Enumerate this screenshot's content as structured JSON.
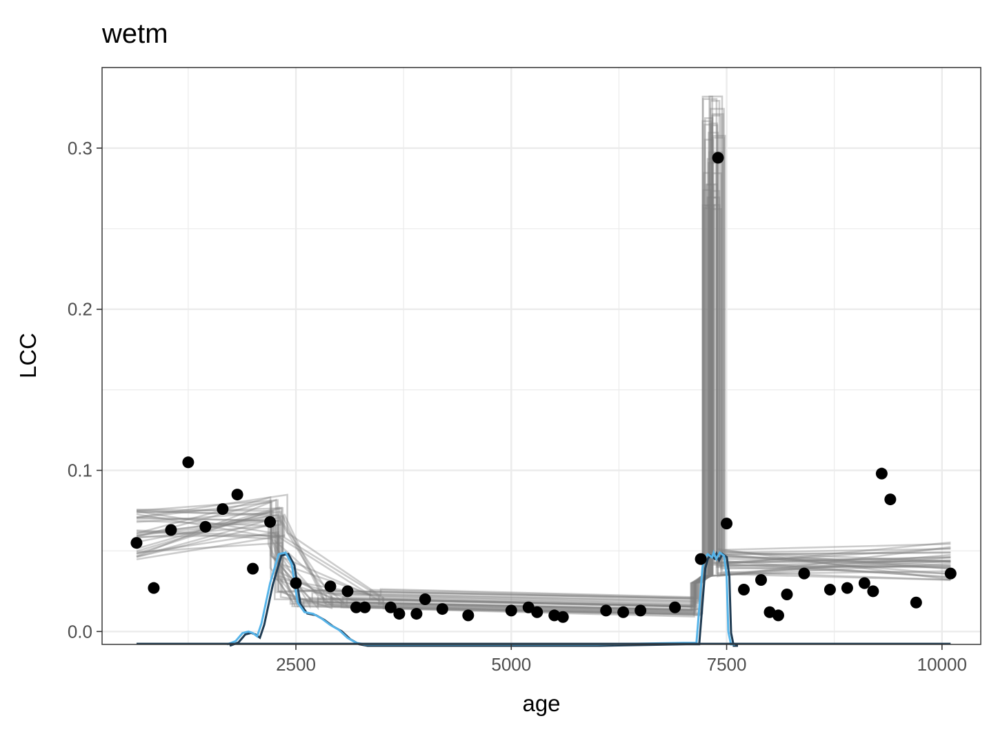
{
  "chart_data": {
    "type": "scatter",
    "title": "wetm",
    "xlabel": "age",
    "ylabel": "LCC",
    "xlim": [
      250,
      10450
    ],
    "ylim": [
      -0.008,
      0.35
    ],
    "x_ticks": [
      2500,
      5000,
      7500,
      10000
    ],
    "x_tick_labels": [
      "2500",
      "5000",
      "7500",
      "10000"
    ],
    "y_ticks": [
      0.0,
      0.1,
      0.2,
      0.3
    ],
    "y_tick_labels": [
      "0.0",
      "0.1",
      "0.2",
      "0.3"
    ],
    "grid": true,
    "series": [
      {
        "type": "points",
        "x": [
          650,
          850,
          1050,
          1250,
          1450,
          1650,
          1820,
          2200,
          2000,
          2500,
          2900,
          3100,
          3200,
          3300,
          3600,
          3700,
          3900,
          4000,
          4200,
          4500,
          5000,
          5200,
          5300,
          5500,
          5600,
          6100,
          6300,
          6500,
          6900,
          7200,
          7400,
          7500,
          7700,
          7900,
          8000,
          8100,
          8200,
          8400,
          8700,
          8900,
          9100,
          9200,
          9300,
          9400,
          9700,
          10100
        ],
        "y": [
          0.055,
          0.027,
          0.063,
          0.105,
          0.065,
          0.076,
          0.085,
          0.068,
          0.039,
          0.03,
          0.028,
          0.025,
          0.015,
          0.015,
          0.015,
          0.011,
          0.011,
          0.02,
          0.014,
          0.01,
          0.013,
          0.015,
          0.012,
          0.01,
          0.009,
          0.013,
          0.012,
          0.013,
          0.015,
          0.045,
          0.294,
          0.067,
          0.026,
          0.032,
          0.012,
          0.01,
          0.023,
          0.036,
          0.026,
          0.027,
          0.03,
          0.025,
          0.098,
          0.082,
          0.018,
          0.036
        ],
        "color": "#000000"
      },
      {
        "type": "density",
        "x": [
          1700,
          1800,
          1880,
          1950,
          2000,
          2050,
          2100,
          2200,
          2300,
          2380,
          2450,
          2520,
          2600,
          2700,
          2800,
          2900,
          3000,
          3100,
          3200,
          3300,
          4000,
          5000,
          6000,
          7000,
          7150,
          7220,
          7250,
          7280,
          7330,
          7350,
          7380,
          7420,
          7470,
          7500,
          7520,
          7550,
          7600
        ],
        "y": [
          -0.008,
          -0.006,
          -0.001,
          0.0,
          -0.001,
          -0.003,
          0.005,
          0.03,
          0.048,
          0.049,
          0.042,
          0.018,
          0.012,
          0.011,
          0.008,
          0.004,
          0.001,
          -0.004,
          -0.007,
          -0.008,
          -0.008,
          -0.008,
          -0.008,
          -0.007,
          -0.007,
          0.04,
          0.046,
          0.048,
          0.046,
          0.049,
          0.045,
          0.049,
          0.047,
          0.035,
          0.0,
          -0.008,
          -0.008
        ],
        "color": "#56B4E9"
      }
    ],
    "colors": {
      "points": "#000000",
      "density": "#56B4E9",
      "density_dark": "#1f3b52",
      "ensemble": "#808080",
      "grid": "#ebebeb",
      "panel_border": "#333333"
    }
  }
}
